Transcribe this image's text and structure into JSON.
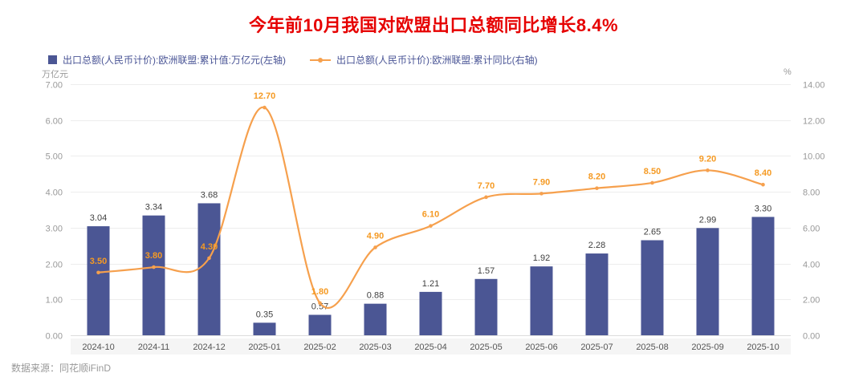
{
  "title": "今年前10月我国对欧盟出口总额同比增长8.4%",
  "legend": {
    "bar_label": "出口总额(人民币计价):欧洲联盟:累计值:万亿元(左轴)",
    "line_label": "出口总额(人民币计价):欧洲联盟:累计同比(右轴)"
  },
  "axes": {
    "left_unit": "万亿元",
    "right_unit": "%"
  },
  "source": "数据来源：同花顺iFinD",
  "colors": {
    "title": "#e60000",
    "bar": "#4b5694",
    "line": "#f6a04d",
    "line_label": "#f59a23",
    "bar_label": "#404040",
    "axis_text": "#999999",
    "category_text": "#555555",
    "grid": "#ededed",
    "axis_line": "#dddddd",
    "band": "#f5f5f5",
    "legend_text": "#4a5596",
    "source_text": "#999999"
  },
  "chart_data": {
    "type": "bar",
    "subtype": "bar+line dual-axis combo",
    "title": "今年前10月我国对欧盟出口总额同比增长8.4%",
    "categories": [
      "2024-10",
      "2024-11",
      "2024-12",
      "2025-01",
      "2025-02",
      "2025-03",
      "2025-04",
      "2025-05",
      "2025-06",
      "2025-07",
      "2025-08",
      "2025-09",
      "2025-10"
    ],
    "series": [
      {
        "name": "出口总额(人民币计价):欧洲联盟:累计值:万亿元(左轴)",
        "type": "bar",
        "axis": "left",
        "values": [
          3.04,
          3.34,
          3.68,
          0.35,
          0.57,
          0.88,
          1.21,
          1.57,
          1.92,
          2.28,
          2.65,
          2.99,
          3.3
        ]
      },
      {
        "name": "出口总额(人民币计价):欧洲联盟:累计同比(右轴)",
        "type": "line",
        "axis": "right",
        "values": [
          3.5,
          3.8,
          4.3,
          12.7,
          1.8,
          4.9,
          6.1,
          7.7,
          7.9,
          8.2,
          8.5,
          9.2,
          8.4
        ]
      }
    ],
    "left_axis": {
      "unit": "万亿元",
      "min": 0,
      "max": 7,
      "step": 1,
      "ticks": [
        "0.00",
        "1.00",
        "2.00",
        "3.00",
        "4.00",
        "5.00",
        "6.00",
        "7.00"
      ]
    },
    "right_axis": {
      "unit": "%",
      "min": 0,
      "max": 14,
      "step": 2,
      "ticks": [
        "0.00",
        "2.00",
        "4.00",
        "6.00",
        "8.00",
        "10.00",
        "12.00",
        "14.00"
      ]
    },
    "grid": true,
    "legend_position": "top-left",
    "source": "数据来源：同花顺iFinD"
  }
}
